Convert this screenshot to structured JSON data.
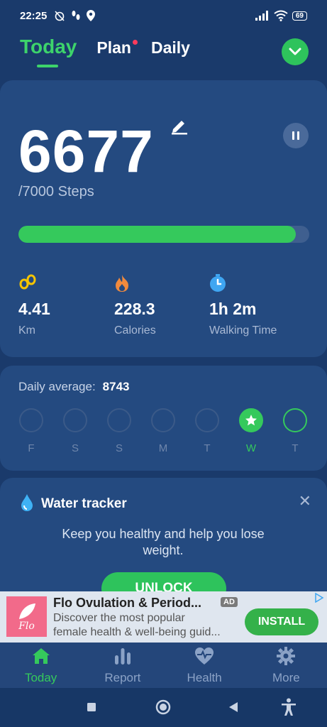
{
  "status_bar": {
    "time": "22:25",
    "battery": "69"
  },
  "tabs": [
    {
      "label": "Today",
      "active": true
    },
    {
      "label": "Plan",
      "active": false,
      "badge_dot": true
    },
    {
      "label": "Daily",
      "active": false
    }
  ],
  "steps": {
    "count": "6677",
    "goal": "/7000 Steps",
    "progress_fraction": 0.954
  },
  "stats": [
    {
      "icon": "footprints-icon",
      "value": "4.41",
      "label": "Km"
    },
    {
      "icon": "flame-icon",
      "value": "228.3",
      "label": "Calories"
    },
    {
      "icon": "stopwatch-icon",
      "value": "1h 2m",
      "label": "Walking Time"
    }
  ],
  "week": {
    "average_label": "Daily average:",
    "average_value": "8743",
    "days": [
      {
        "label": "F",
        "state": "empty"
      },
      {
        "label": "S",
        "state": "empty"
      },
      {
        "label": "S",
        "state": "empty"
      },
      {
        "label": "M",
        "state": "empty"
      },
      {
        "label": "T",
        "state": "empty"
      },
      {
        "label": "W",
        "state": "done"
      },
      {
        "label": "T",
        "state": "today"
      }
    ]
  },
  "water": {
    "title": "Water tracker",
    "description": "Keep you healthy and help you lose weight.",
    "button": "UNLOCK"
  },
  "ad": {
    "title": "Flo Ovulation & Period...",
    "badge": "AD",
    "line1": "Discover the most popular",
    "line2": "female health & well-being guid...",
    "install": "INSTALL",
    "logo_text": "Flo"
  },
  "bottom_nav": [
    {
      "label": "Today",
      "icon": "home-icon",
      "active": true
    },
    {
      "label": "Report",
      "icon": "bar-chart-icon",
      "active": false
    },
    {
      "label": "Health",
      "icon": "heart-pulse-icon",
      "active": false
    },
    {
      "label": "More",
      "icon": "gear-icon",
      "active": false
    }
  ],
  "colors": {
    "accent": "#35c95c",
    "background": "#1a3a6b",
    "card": "#244a80"
  }
}
